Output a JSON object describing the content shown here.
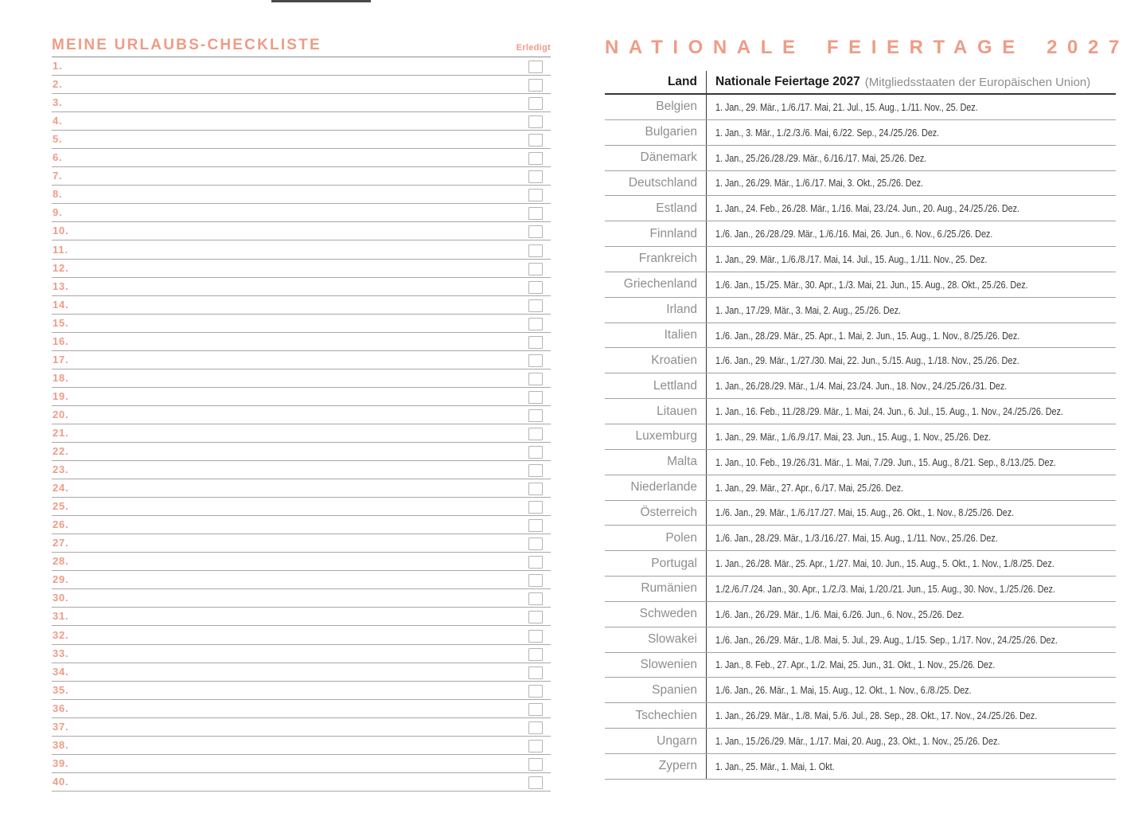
{
  "colors": {
    "accent": "#ee9c86",
    "country_gray": "#8e8e8e",
    "text_dark": "#3a3a3a",
    "header_black": "#1c1c1c",
    "rule_light": "#a8a8a8",
    "rule_mid": "#a0a0a0",
    "rule_dark": "#383838",
    "checkbox_border": "#b4b4b4"
  },
  "checklist": {
    "title": "MEINE URLAUBS-CHECKLISTE",
    "done_label": "Erledigt",
    "items": [
      "1.",
      "2.",
      "3.",
      "4.",
      "5.",
      "6.",
      "7.",
      "8.",
      "9.",
      "10.",
      "11.",
      "12.",
      "13.",
      "14.",
      "15.",
      "16.",
      "17.",
      "18.",
      "19.",
      "20.",
      "21.",
      "22.",
      "23.",
      "24.",
      "25.",
      "26.",
      "27.",
      "28.",
      "29.",
      "30.",
      "31.",
      "32.",
      "33.",
      "34.",
      "35.",
      "36.",
      "37.",
      "38.",
      "39.",
      "40."
    ]
  },
  "holidays": {
    "title": "NATIONALE FEIERTAGE 2027",
    "table": {
      "col1_header": "Land",
      "col2_header": "Nationale Feiertage 2027",
      "col2_note": "(Mitgliedsstaaten der Europäischen Union)",
      "rows": [
        {
          "country": "Belgien",
          "dates": "1. Jan., 29. Mär., 1./6./17. Mai, 21. Jul., 15. Aug., 1./11. Nov., 25. Dez."
        },
        {
          "country": "Bulgarien",
          "dates": "1. Jan., 3. Mär., 1./2./3./6. Mai, 6./22. Sep., 24./25./26. Dez."
        },
        {
          "country": "Dänemark",
          "dates": "1. Jan., 25./26./28./29. Mär., 6./16./17. Mai, 25./26. Dez."
        },
        {
          "country": "Deutschland",
          "dates": "1. Jan., 26./29. Mär., 1./6./17. Mai, 3. Okt., 25./26. Dez."
        },
        {
          "country": "Estland",
          "dates": "1. Jan., 24. Feb., 26./28. Mär., 1./16. Mai, 23./24. Jun., 20. Aug., 24./25./26. Dez."
        },
        {
          "country": "Finnland",
          "dates": "1./6. Jan., 26./28./29. Mär., 1./6./16. Mai, 26. Jun., 6. Nov., 6./25./26. Dez."
        },
        {
          "country": "Frankreich",
          "dates": "1. Jan., 29. Mär., 1./6./8./17. Mai, 14. Jul., 15. Aug., 1./11. Nov., 25. Dez."
        },
        {
          "country": "Griechenland",
          "dates": "1./6. Jan., 15./25. Mär., 30. Apr., 1./3. Mai, 21. Jun., 15. Aug., 28. Okt., 25./26. Dez."
        },
        {
          "country": "Irland",
          "dates": "1. Jan., 17./29. Mär., 3. Mai, 2. Aug., 25./26. Dez."
        },
        {
          "country": "Italien",
          "dates": "1./6. Jan., 28./29. Mär., 25. Apr., 1. Mai, 2. Jun., 15. Aug., 1. Nov., 8./25./26. Dez."
        },
        {
          "country": "Kroatien",
          "dates": "1./6. Jan., 29. Mär., 1./27./30. Mai, 22. Jun., 5./15. Aug., 1./18. Nov., 25./26. Dez."
        },
        {
          "country": "Lettland",
          "dates": "1. Jan., 26./28./29. Mär., 1./4. Mai, 23./24. Jun., 18. Nov., 24./25./26./31. Dez."
        },
        {
          "country": "Litauen",
          "dates": "1. Jan., 16. Feb., 11./28./29. Mär., 1. Mai, 24. Jun., 6. Jul., 15. Aug., 1. Nov., 24./25./26. Dez."
        },
        {
          "country": "Luxemburg",
          "dates": "1. Jan., 29. Mär., 1./6./9./17. Mai, 23. Jun., 15. Aug., 1. Nov., 25./26. Dez."
        },
        {
          "country": "Malta",
          "dates": "1. Jan., 10. Feb., 19./26./31. Mär., 1. Mai, 7./29. Jun., 15. Aug., 8./21. Sep., 8./13./25. Dez."
        },
        {
          "country": "Niederlande",
          "dates": "1. Jan., 29. Mär., 27. Apr., 6./17. Mai, 25./26. Dez."
        },
        {
          "country": "Österreich",
          "dates": "1./6. Jan., 29. Mär., 1./6./17./27. Mai, 15. Aug., 26. Okt., 1. Nov., 8./25./26. Dez."
        },
        {
          "country": "Polen",
          "dates": "1./6. Jan., 28./29. Mär., 1./3./16./27. Mai, 15. Aug., 1./11. Nov., 25./26. Dez."
        },
        {
          "country": "Portugal",
          "dates": "1. Jan., 26./28. Mär., 25. Apr., 1./27. Mai, 10. Jun., 15. Aug., 5. Okt., 1. Nov., 1./8./25. Dez."
        },
        {
          "country": "Rumänien",
          "dates": "1./2./6./7./24. Jan., 30. Apr., 1./2./3. Mai, 1./20./21. Jun., 15. Aug., 30. Nov., 1./25./26. Dez."
        },
        {
          "country": "Schweden",
          "dates": "1./6. Jan., 26./29. Mär., 1./6. Mai, 6./26. Jun., 6. Nov., 25./26. Dez."
        },
        {
          "country": "Slowakei",
          "dates": "1./6. Jan., 26./29. Mär., 1./8. Mai, 5. Jul., 29. Aug., 1./15. Sep., 1./17. Nov., 24./25./26. Dez."
        },
        {
          "country": "Slowenien",
          "dates": "1. Jan., 8. Feb., 27. Apr., 1./2. Mai, 25. Jun., 31. Okt., 1. Nov., 25./26. Dez."
        },
        {
          "country": "Spanien",
          "dates": "1./6. Jan., 26. Mär., 1. Mai, 15. Aug., 12. Okt., 1. Nov., 6./8./25. Dez."
        },
        {
          "country": "Tschechien",
          "dates": "1. Jan., 26./29. Mär., 1./8. Mai, 5./6. Jul., 28. Sep., 28. Okt., 17. Nov., 24./25./26. Dez."
        },
        {
          "country": "Ungarn",
          "dates": "1. Jan., 15./26./29. Mär., 1./17. Mai, 20. Aug., 23. Okt., 1. Nov., 25./26. Dez."
        },
        {
          "country": "Zypern",
          "dates": "1. Jan., 25. Mär., 1. Mai, 1. Okt."
        }
      ]
    }
  }
}
